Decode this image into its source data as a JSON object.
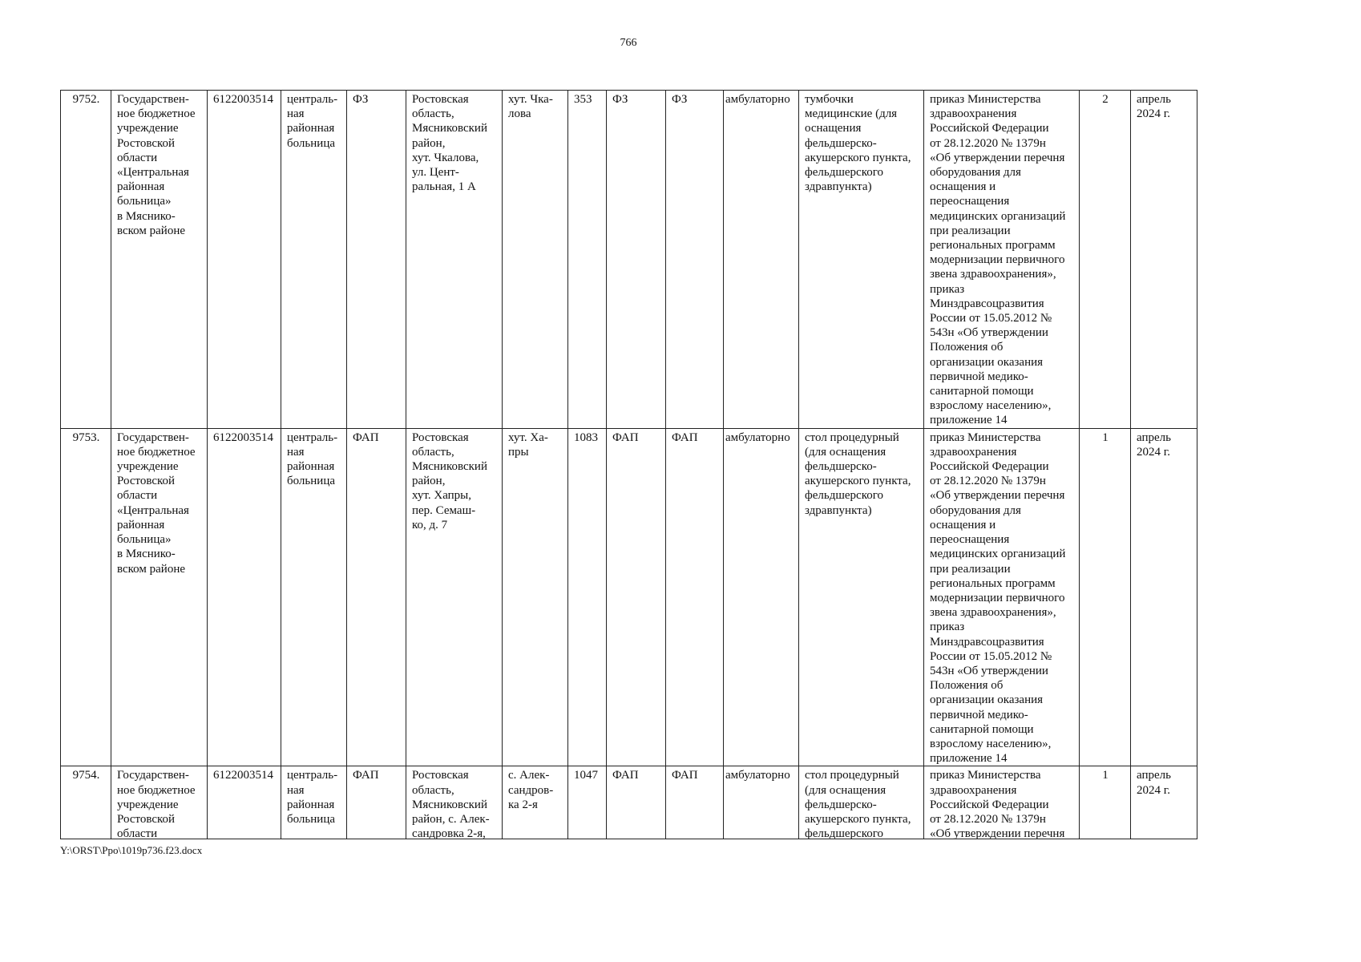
{
  "page_number": "766",
  "footer_path": "Y:\\ORST\\Ppo\\1019p736.f23.docx",
  "rows": [
    {
      "num": "9752.",
      "org": "Государствен-\nное бюджетное\nучреждение\nРостовской\nобласти\n«Центральная\nрайонная\nбольница»\nв Мяснико-\nвском районе",
      "inn": "6122003514",
      "type": "централь-\nная\nрайонная\nбольница",
      "unit": "ФЗ",
      "address": "Ростовская\nобласть,\nМясниковский\nрайон,\nхут. Чкалова,\nул. Цент-\nральная, 1 А",
      "locality": "хут. Чка-\nлова",
      "population": "353",
      "unit2": "ФЗ",
      "unit3": "ФЗ",
      "care": "амбулаторно",
      "equipment": "тумбочки\nмедицинские (для\nоснащения\nфельдшерско-\nакушерского пункта,\nфельдшерского\nздравпункта)",
      "basis": "приказ Министерства\nздравоохранения\nРоссийской Федерации\nот 28.12.2020  № 1379н\n«Об утверждении перечня\nоборудования для\nоснащения и\nпереоснащения\nмедицинских организаций\nпри реализации\nрегиональных программ\nмодернизации первичного\nзвена здравоохранения»,\nприказ\nМинздравсоцразвития\nРоссии от 15.05.2012 №\n543н «Об утверждении\nПоложения об\nорганизации оказания\nпервичной медико-\nсанитарной помощи\nвзрослому населению»,\nприложение 14",
      "qty": "2",
      "date": "апрель\n2024 г."
    },
    {
      "num": "9753.",
      "org": "Государствен-\nное бюджетное\nучреждение\nРостовской\nобласти\n«Центральная\nрайонная\nбольница»\nв Мяснико-\nвском районе",
      "inn": "6122003514",
      "type": "централь-\nная\nрайонная\nбольница",
      "unit": "ФАП",
      "address": "Ростовская\nобласть,\nМясниковский\nрайон,\nхут. Хапры,\nпер. Семаш-\nко, д. 7",
      "locality": "хут. Ха-\nпры",
      "population": "1083",
      "unit2": "ФАП",
      "unit3": "ФАП",
      "care": "амбулаторно",
      "equipment": "стол процедурный\n(для оснащения\nфельдшерско-\nакушерского пункта,\nфельдшерского\nздравпункта)",
      "basis": "приказ Министерства\nздравоохранения\nРоссийской Федерации\nот 28.12.2020  № 1379н\n«Об утверждении перечня\nоборудования для\nоснащения и\nпереоснащения\nмедицинских организаций\nпри реализации\nрегиональных программ\nмодернизации первичного\nзвена здравоохранения»,\nприказ\nМинздравсоцразвития\nРоссии от 15.05.2012 №\n543н «Об утверждении\nПоложения об\nорганизации оказания\nпервичной медико-\nсанитарной помощи\nвзрослому населению»,\nприложение 14",
      "qty": "1",
      "date": "апрель\n2024 г."
    },
    {
      "num": "9754.",
      "org": "Государствен-\nное бюджетное\nучреждение\nРостовской\nобласти",
      "inn": "6122003514",
      "type": "централь-\nная\nрайонная\nбольница",
      "unit": "ФАП",
      "address": "Ростовская\nобласть,\nМясниковский\nрайон, с. Алек-\nсандровка 2-я,",
      "locality": "с. Алек-\nсандров-\nка 2-я",
      "population": "1047",
      "unit2": "ФАП",
      "unit3": "ФАП",
      "care": "амбулаторно",
      "equipment": "стол процедурный\n(для оснащения\nфельдшерско-\nакушерского пункта,\nфельдшерского",
      "basis": "приказ Министерства\nздравоохранения\nРоссийской Федерации\nот 28.12.2020  № 1379н\n«Об утверждении перечня",
      "qty": "1",
      "date": "апрель\n2024 г."
    }
  ]
}
